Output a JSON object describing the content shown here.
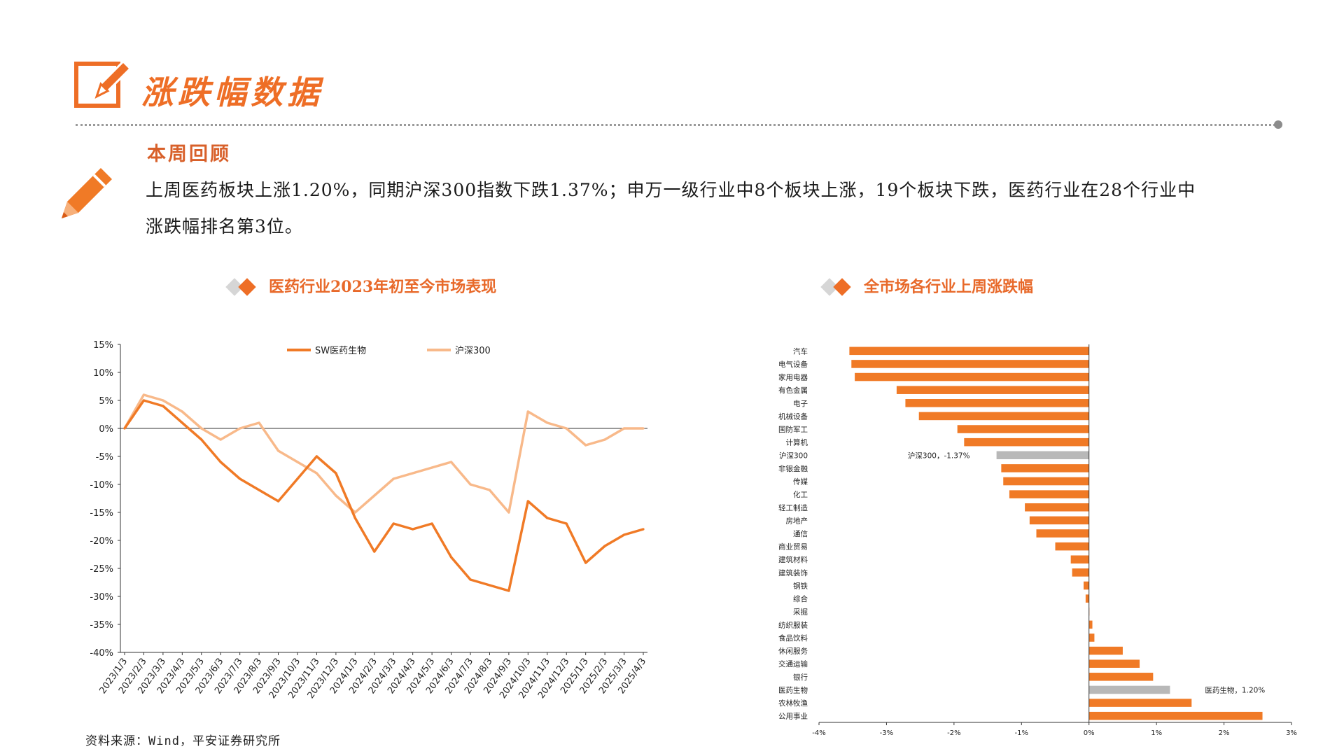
{
  "header": {
    "title": "涨跌幅数据",
    "logo_icon": "pencil-square-icon",
    "accent_color": "#ee6e26"
  },
  "review": {
    "heading": "本周回顾",
    "icon": "pencil-icon",
    "line1": "上周医药板块上涨1.20%，同期沪深300指数下跌1.37%；申万一级行业中8个板块上涨，19个板块下跌，医药行业在28个行业中",
    "line2": "涨跌幅排名第3位。"
  },
  "charts": {
    "left_title": "医药行业2023年初至今市场表现",
    "right_title": "全市场各行业上周涨跌幅"
  },
  "source": "资料来源：Wind，平安证券研究所",
  "chart_data": [
    {
      "type": "line",
      "title": "医药行业2023年初至今市场表现",
      "ylim": [
        -40,
        15
      ],
      "yticks": [
        "15%",
        "10%",
        "5%",
        "0%",
        "-5%",
        "-10%",
        "-15%",
        "-20%",
        "-25%",
        "-30%",
        "-35%",
        "-40%"
      ],
      "ytick_values": [
        15,
        10,
        5,
        0,
        -5,
        -10,
        -15,
        -20,
        -25,
        -30,
        -35,
        -40
      ],
      "categories": [
        "2023/1/3",
        "2023/2/3",
        "2023/3/3",
        "2023/4/3",
        "2023/5/3",
        "2023/6/3",
        "2023/7/3",
        "2023/8/3",
        "2023/9/3",
        "2023/10/3",
        "2023/11/3",
        "2023/12/3",
        "2024/1/3",
        "2024/2/3",
        "2024/3/3",
        "2024/4/3",
        "2024/5/3",
        "2024/6/3",
        "2024/7/3",
        "2024/8/3",
        "2024/9/3",
        "2024/10/3",
        "2024/11/3",
        "2024/12/3",
        "2025/1/3",
        "2025/2/3",
        "2025/3/3",
        "2025/4/3"
      ],
      "legend_position": "top",
      "series": [
        {
          "name": "SW医药生物",
          "color": "#f07a26",
          "values": [
            0,
            5,
            4,
            1,
            -2,
            -6,
            -9,
            -11,
            -13,
            -9,
            -5,
            -8,
            -16,
            -22,
            -17,
            -18,
            -17,
            -23,
            -27,
            -28,
            -29,
            -13,
            -16,
            -17,
            -24,
            -21,
            -19,
            -18
          ]
        },
        {
          "name": "沪深300",
          "color": "#f8b98a",
          "values": [
            0,
            6,
            5,
            3,
            0,
            -2,
            0,
            1,
            -4,
            -6,
            -8,
            -12,
            -15,
            -12,
            -9,
            -8,
            -7,
            -6,
            -10,
            -11,
            -15,
            3,
            1,
            0,
            -3,
            -2,
            0,
            0
          ]
        }
      ]
    },
    {
      "type": "bar",
      "orientation": "horizontal",
      "title": "全市场各行业上周涨跌幅",
      "xlim": [
        -4,
        3
      ],
      "xticks": [
        "-4%",
        "-3%",
        "-2%",
        "-1%",
        "0%",
        "1%",
        "2%",
        "3%"
      ],
      "xtick_values": [
        -4,
        -3,
        -2,
        -1,
        0,
        1,
        2,
        3
      ],
      "bar_color": "#f07a26",
      "highlight_color": "#b8b8b8",
      "categories": [
        "汽车",
        "电气设备",
        "家用电器",
        "有色金属",
        "电子",
        "机械设备",
        "国防军工",
        "计算机",
        "沪深300",
        "非银金融",
        "传媒",
        "化工",
        "轻工制造",
        "房地产",
        "通信",
        "商业贸易",
        "建筑材料",
        "建筑装饰",
        "钢铁",
        "综合",
        "采掘",
        "纺织服装",
        "食品饮料",
        "休闲服务",
        "交通运输",
        "银行",
        "医药生物",
        "农林牧渔",
        "公用事业"
      ],
      "values": [
        -3.55,
        -3.52,
        -3.47,
        -2.85,
        -2.72,
        -2.52,
        -1.95,
        -1.85,
        -1.37,
        -1.3,
        -1.27,
        -1.18,
        -0.95,
        -0.88,
        -0.78,
        -0.5,
        -0.27,
        -0.25,
        -0.08,
        -0.05,
        0,
        0.05,
        0.08,
        0.5,
        0.75,
        0.95,
        1.2,
        1.52,
        2.57
      ],
      "highlighted": [
        "沪深300",
        "医药生物"
      ],
      "annotations": [
        {
          "category": "沪深300",
          "text": "沪深300，-1.37%"
        },
        {
          "category": "医药生物",
          "text": "医药生物，1.20%"
        }
      ]
    }
  ]
}
